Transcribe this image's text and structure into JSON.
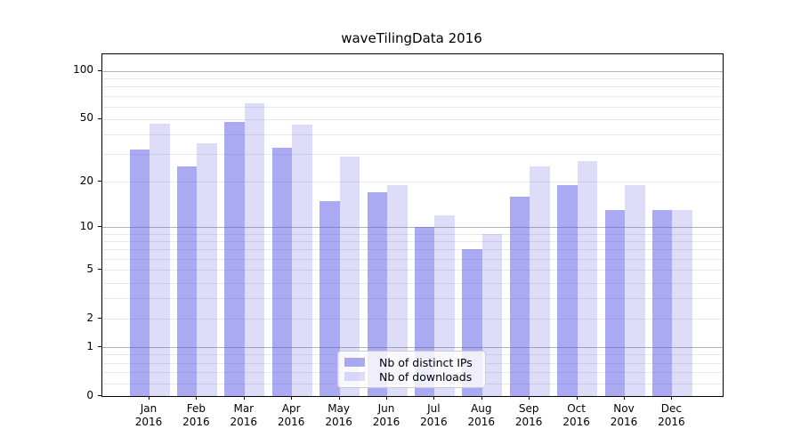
{
  "chart_data": {
    "type": "bar",
    "title": "waveTilingData 2016",
    "categories": [
      {
        "month": "Jan",
        "year": "2016"
      },
      {
        "month": "Feb",
        "year": "2016"
      },
      {
        "month": "Mar",
        "year": "2016"
      },
      {
        "month": "Apr",
        "year": "2016"
      },
      {
        "month": "May",
        "year": "2016"
      },
      {
        "month": "Jun",
        "year": "2016"
      },
      {
        "month": "Jul",
        "year": "2016"
      },
      {
        "month": "Aug",
        "year": "2016"
      },
      {
        "month": "Sep",
        "year": "2016"
      },
      {
        "month": "Oct",
        "year": "2016"
      },
      {
        "month": "Nov",
        "year": "2016"
      },
      {
        "month": "Dec",
        "year": "2016"
      }
    ],
    "series": [
      {
        "name": "Nb of distinct IPs",
        "color": "rgba(85,85,230,0.5)",
        "values": [
          32,
          25,
          48,
          33,
          15,
          17,
          10,
          7,
          16,
          19,
          13,
          13
        ]
      },
      {
        "name": "Nb of downloads",
        "color": "rgba(85,85,230,0.2)",
        "values": [
          47,
          35,
          63,
          46,
          29,
          19,
          12,
          9,
          25,
          27,
          19,
          13
        ]
      }
    ],
    "xlabel": "",
    "ylabel": "",
    "yscale": "log1p",
    "ylim": [
      0,
      127
    ],
    "yticks": [
      0,
      1,
      2,
      5,
      10,
      20,
      50,
      100
    ],
    "minor_gridlines": [
      0.2,
      0.4,
      0.6,
      0.8,
      2,
      3,
      4,
      5,
      6,
      7,
      8,
      9,
      20,
      30,
      40,
      50,
      60,
      70,
      80,
      90
    ],
    "major_gridlines": [
      1,
      10,
      100
    ],
    "grid": "on",
    "legend_position": "lower center",
    "colors": {
      "minor_grid": "#e8e8e8",
      "major_grid": "#b3b3b3",
      "axis": "#000000",
      "legend_border": "#cccccc"
    }
  }
}
